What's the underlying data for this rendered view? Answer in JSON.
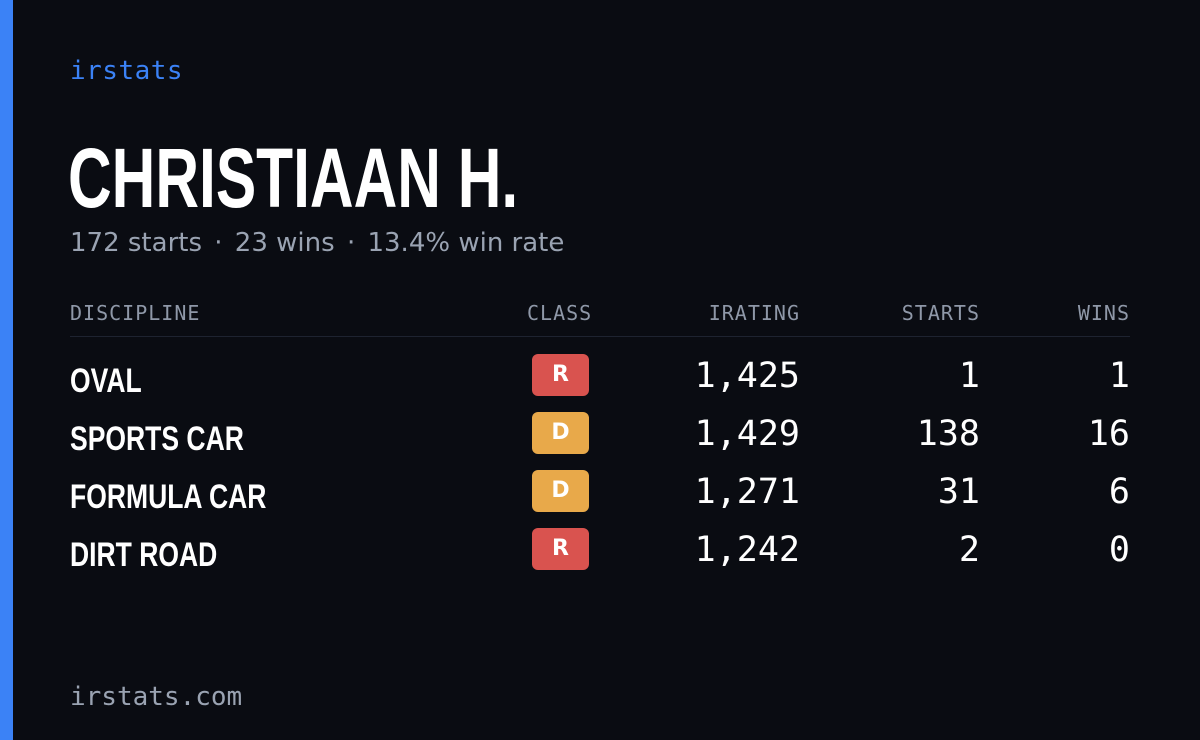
{
  "brand": "irstats",
  "driver": {
    "name": "CHRISTIAAN H.",
    "starts": "172 starts",
    "wins": "23 wins",
    "win_rate": "13.4% win rate",
    "separator": "·"
  },
  "table": {
    "headers": {
      "discipline": "DISCIPLINE",
      "class": "CLASS",
      "irating": "IRATING",
      "starts": "STARTS",
      "wins": "WINS"
    },
    "rows": [
      {
        "discipline": "OVAL",
        "class": "R",
        "class_color": "#d9534f",
        "irating": "1,425",
        "starts": "1",
        "wins": "1"
      },
      {
        "discipline": "SPORTS CAR",
        "class": "D",
        "class_color": "#e8a94a",
        "irating": "1,429",
        "starts": "138",
        "wins": "16"
      },
      {
        "discipline": "FORMULA CAR",
        "class": "D",
        "class_color": "#e8a94a",
        "irating": "1,271",
        "starts": "31",
        "wins": "6"
      },
      {
        "discipline": "DIRT ROAD",
        "class": "R",
        "class_color": "#d9534f",
        "irating": "1,242",
        "starts": "2",
        "wins": "0"
      }
    ]
  },
  "footer": "irstats.com",
  "colors": {
    "accent": "#3b82f6",
    "background": "#0a0c12",
    "muted_text": "#9aa3b2"
  }
}
